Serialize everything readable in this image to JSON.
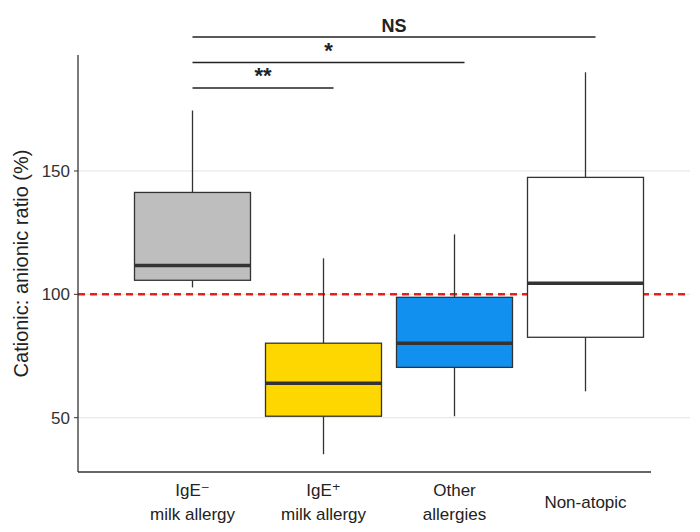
{
  "chart_data": {
    "type": "box",
    "categories": [
      "IgE⁻\nmilk allergy",
      "IgE⁺\nmilk allergy",
      "Other\nallergies",
      "Non-atopic"
    ],
    "min": [
      102.8,
      35.2,
      50.6,
      60.7
    ],
    "q1": [
      105.7,
      50.6,
      70.4,
      82.6
    ],
    "median": [
      111.7,
      64,
      80.2,
      104.5
    ],
    "q3": [
      141.3,
      80.2,
      98.8,
      147.4
    ],
    "max": [
      174.5,
      114.6,
      124.3,
      190
    ],
    "colors": [
      "#bebebe",
      "#ffd700",
      "#1290f0",
      "#ffffff"
    ],
    "y_label": "Cationic: anionic ratio (%)",
    "ylim": [
      28,
      197
    ],
    "yticks": [
      50,
      100,
      150
    ],
    "grid": true,
    "hline": 100,
    "comparisons": [
      {
        "label": "**",
        "pair": [
          0,
          1
        ]
      },
      {
        "label": "*",
        "pair": [
          0,
          2
        ]
      },
      {
        "label": "NS",
        "pair": [
          0,
          3
        ]
      }
    ]
  }
}
